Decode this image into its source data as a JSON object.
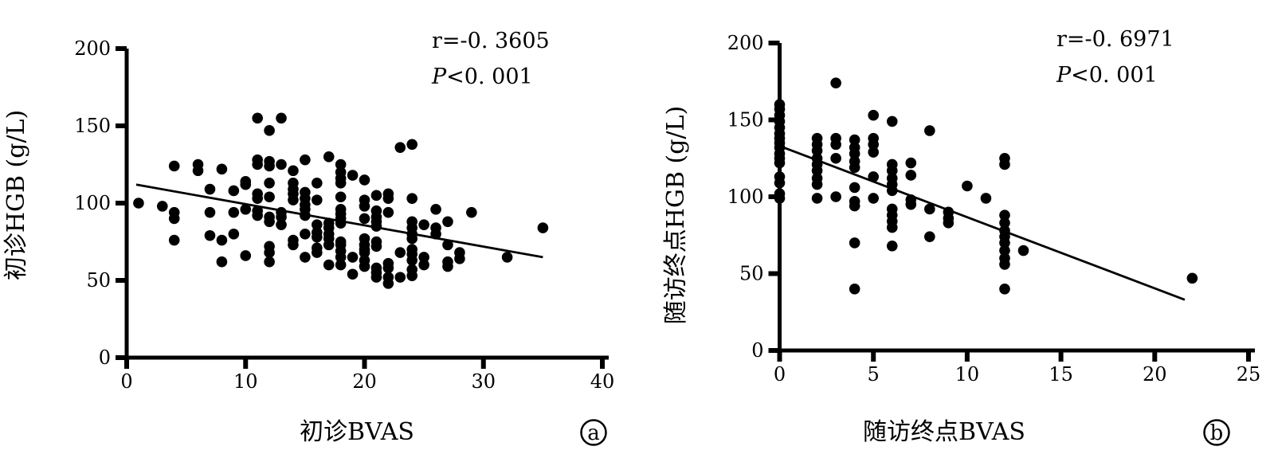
{
  "figure": {
    "background_color": "#ffffff",
    "ink_color": "#000000",
    "description": "Two scatter plots of BVAS vs HGB correlation"
  },
  "chart_data": [
    {
      "type": "scatter",
      "panel_label": "a",
      "xlabel": "初诊BVAS",
      "ylabel": "初诊HGB (g/L)",
      "annotation": {
        "r_text": "r=-0. 3605",
        "p_italic": "P",
        "p_rest": "<0. 001"
      },
      "xlim": [
        0,
        40
      ],
      "ylim": [
        0,
        200
      ],
      "xticks": [
        0,
        10,
        20,
        30,
        40
      ],
      "yticks": [
        0,
        50,
        100,
        150,
        200
      ],
      "grid": false,
      "trendline": {
        "x1": 0.8,
        "y1": 112,
        "x2": 35,
        "y2": 65
      },
      "points": [
        [
          1,
          100
        ],
        [
          3,
          98
        ],
        [
          4,
          124
        ],
        [
          4,
          94
        ],
        [
          4,
          90
        ],
        [
          4,
          76
        ],
        [
          6,
          125
        ],
        [
          6,
          121
        ],
        [
          7,
          109
        ],
        [
          7,
          94
        ],
        [
          7,
          79
        ],
        [
          8,
          122
        ],
        [
          8,
          76
        ],
        [
          8,
          62
        ],
        [
          9,
          108
        ],
        [
          9,
          94
        ],
        [
          9,
          80
        ],
        [
          10,
          114
        ],
        [
          10,
          112
        ],
        [
          10,
          96
        ],
        [
          10,
          66
        ],
        [
          11,
          155
        ],
        [
          11,
          128
        ],
        [
          11,
          125
        ],
        [
          11,
          106
        ],
        [
          11,
          103
        ],
        [
          11,
          95
        ],
        [
          11,
          92
        ],
        [
          12,
          147
        ],
        [
          12,
          127
        ],
        [
          12,
          124
        ],
        [
          12,
          113
        ],
        [
          12,
          104
        ],
        [
          12,
          91
        ],
        [
          12,
          88
        ],
        [
          12,
          72
        ],
        [
          12,
          68
        ],
        [
          12,
          62
        ],
        [
          13,
          155
        ],
        [
          13,
          125
        ],
        [
          13,
          94
        ],
        [
          13,
          91
        ],
        [
          13,
          86
        ],
        [
          14,
          121
        ],
        [
          14,
          113
        ],
        [
          14,
          109
        ],
        [
          14,
          106
        ],
        [
          14,
          102
        ],
        [
          14,
          76
        ],
        [
          14,
          73
        ],
        [
          15,
          128
        ],
        [
          15,
          107
        ],
        [
          15,
          103
        ],
        [
          15,
          99
        ],
        [
          15,
          96
        ],
        [
          15,
          92
        ],
        [
          15,
          80
        ],
        [
          15,
          65
        ],
        [
          16,
          113
        ],
        [
          16,
          102
        ],
        [
          16,
          86
        ],
        [
          16,
          81
        ],
        [
          16,
          78
        ],
        [
          16,
          71
        ],
        [
          16,
          68
        ],
        [
          17,
          130
        ],
        [
          17,
          87
        ],
        [
          17,
          84
        ],
        [
          17,
          80
        ],
        [
          17,
          77
        ],
        [
          17,
          73
        ],
        [
          17,
          60
        ],
        [
          18,
          125
        ],
        [
          18,
          120
        ],
        [
          18,
          116
        ],
        [
          18,
          113
        ],
        [
          18,
          104
        ],
        [
          18,
          96
        ],
        [
          18,
          93
        ],
        [
          18,
          90
        ],
        [
          18,
          87
        ],
        [
          18,
          75
        ],
        [
          18,
          73
        ],
        [
          18,
          69
        ],
        [
          18,
          65
        ],
        [
          18,
          60
        ],
        [
          19,
          118
        ],
        [
          19,
          65
        ],
        [
          19,
          54
        ],
        [
          20,
          115
        ],
        [
          20,
          102
        ],
        [
          20,
          98
        ],
        [
          20,
          90
        ],
        [
          20,
          77
        ],
        [
          20,
          73
        ],
        [
          20,
          70
        ],
        [
          20,
          68
        ],
        [
          20,
          63
        ],
        [
          20,
          59
        ],
        [
          21,
          105
        ],
        [
          21,
          95
        ],
        [
          21,
          91
        ],
        [
          21,
          88
        ],
        [
          21,
          85
        ],
        [
          21,
          75
        ],
        [
          21,
          72
        ],
        [
          21,
          58
        ],
        [
          21,
          55
        ],
        [
          21,
          52
        ],
        [
          22,
          106
        ],
        [
          22,
          103
        ],
        [
          22,
          94
        ],
        [
          22,
          61
        ],
        [
          22,
          58
        ],
        [
          22,
          52
        ],
        [
          22,
          48
        ],
        [
          23,
          136
        ],
        [
          23,
          68
        ],
        [
          23,
          52
        ],
        [
          24,
          138
        ],
        [
          24,
          103
        ],
        [
          24,
          88
        ],
        [
          24,
          84
        ],
        [
          24,
          80
        ],
        [
          24,
          77
        ],
        [
          24,
          70
        ],
        [
          24,
          67
        ],
        [
          24,
          63
        ],
        [
          24,
          57
        ],
        [
          24,
          53
        ],
        [
          25,
          86
        ],
        [
          25,
          65
        ],
        [
          25,
          60
        ],
        [
          26,
          96
        ],
        [
          26,
          84
        ],
        [
          26,
          80
        ],
        [
          27,
          88
        ],
        [
          27,
          73
        ],
        [
          27,
          62
        ],
        [
          27,
          59
        ],
        [
          28,
          68
        ],
        [
          28,
          64
        ],
        [
          29,
          94
        ],
        [
          32,
          65
        ],
        [
          35,
          84
        ]
      ]
    },
    {
      "type": "scatter",
      "panel_label": "b",
      "xlabel": "随访终点BVAS",
      "ylabel": "随访终点HGB (g/L)",
      "annotation": {
        "r_text": "r=-0. 6971",
        "p_italic": "P",
        "p_rest": "<0. 001"
      },
      "xlim": [
        0,
        25
      ],
      "ylim": [
        0,
        200
      ],
      "xticks": [
        0,
        5,
        10,
        15,
        20,
        25
      ],
      "yticks": [
        0,
        50,
        100,
        150,
        200
      ],
      "grid": false,
      "trendline": {
        "x1": 0,
        "y1": 133,
        "x2": 21.6,
        "y2": 33
      },
      "points": [
        [
          0,
          160
        ],
        [
          0,
          157
        ],
        [
          0,
          153
        ],
        [
          0,
          149
        ],
        [
          0,
          145
        ],
        [
          0,
          141
        ],
        [
          0,
          138
        ],
        [
          0,
          135
        ],
        [
          0,
          132
        ],
        [
          0,
          128
        ],
        [
          0,
          125
        ],
        [
          0,
          122
        ],
        [
          0,
          113
        ],
        [
          0,
          109
        ],
        [
          0,
          102
        ],
        [
          0,
          99
        ],
        [
          2,
          138
        ],
        [
          2,
          134
        ],
        [
          2,
          130
        ],
        [
          2,
          125
        ],
        [
          2,
          121
        ],
        [
          2,
          117
        ],
        [
          2,
          112
        ],
        [
          2,
          108
        ],
        [
          2,
          99
        ],
        [
          3,
          174
        ],
        [
          3,
          138
        ],
        [
          3,
          134
        ],
        [
          3,
          125
        ],
        [
          3,
          100
        ],
        [
          4,
          137
        ],
        [
          4,
          132
        ],
        [
          4,
          128
        ],
        [
          4,
          123
        ],
        [
          4,
          119
        ],
        [
          4,
          106
        ],
        [
          4,
          97
        ],
        [
          4,
          94
        ],
        [
          4,
          70
        ],
        [
          4,
          40
        ],
        [
          5,
          153
        ],
        [
          5,
          138
        ],
        [
          5,
          134
        ],
        [
          5,
          129
        ],
        [
          5,
          113
        ],
        [
          5,
          99
        ],
        [
          6,
          149
        ],
        [
          6,
          121
        ],
        [
          6,
          117
        ],
        [
          6,
          112
        ],
        [
          6,
          108
        ],
        [
          6,
          104
        ],
        [
          6,
          92
        ],
        [
          6,
          88
        ],
        [
          6,
          84
        ],
        [
          6,
          80
        ],
        [
          6,
          68
        ],
        [
          7,
          122
        ],
        [
          7,
          114
        ],
        [
          7,
          98
        ],
        [
          7,
          95
        ],
        [
          8,
          143
        ],
        [
          8,
          92
        ],
        [
          8,
          74
        ],
        [
          9,
          90
        ],
        [
          9,
          86
        ],
        [
          9,
          83
        ],
        [
          10,
          107
        ],
        [
          11,
          99
        ],
        [
          12,
          125
        ],
        [
          12,
          121
        ],
        [
          12,
          88
        ],
        [
          12,
          83
        ],
        [
          12,
          78
        ],
        [
          12,
          74
        ],
        [
          12,
          70
        ],
        [
          12,
          65
        ],
        [
          12,
          60
        ],
        [
          12,
          56
        ],
        [
          12,
          40
        ],
        [
          13,
          65
        ],
        [
          22,
          47
        ]
      ]
    }
  ]
}
